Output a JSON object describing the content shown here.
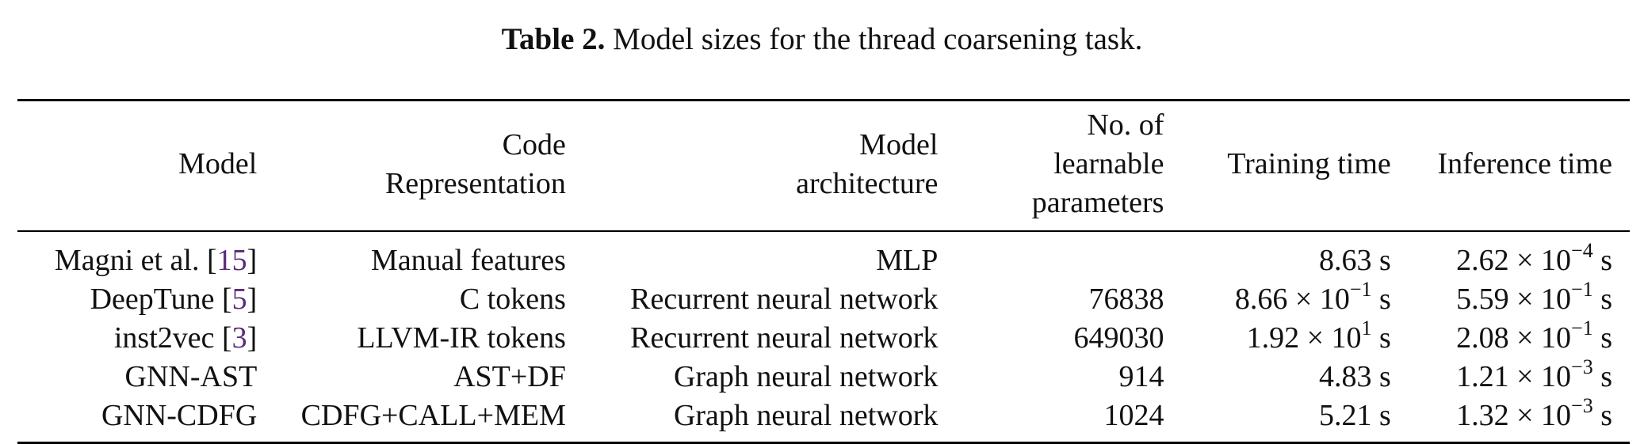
{
  "caption": {
    "label": "Table 2.",
    "text": "Model sizes for the thread coarsening task."
  },
  "headers": [
    [
      "Model"
    ],
    [
      "Code",
      "Representation"
    ],
    [
      "Model",
      "architecture"
    ],
    [
      "No. of learnable",
      "parameters"
    ],
    [
      "Training time"
    ],
    [
      "Inference time"
    ]
  ],
  "rows": [
    {
      "model": "Magni et al. ",
      "ref": "15",
      "code": "Manual features",
      "arch": "MLP",
      "params": "",
      "train": {
        "mant": "8.63 s",
        "exp": ""
      },
      "infer": {
        "mant": "2.62 × 10",
        "exp": "−4",
        "unit": " s"
      }
    },
    {
      "model": "DeepTune ",
      "ref": "5",
      "code": "C tokens",
      "arch": "Recurrent neural network",
      "params": "76838",
      "train": {
        "mant": "8.66 × 10",
        "exp": "−1",
        "unit": " s"
      },
      "infer": {
        "mant": "5.59 × 10",
        "exp": "−1",
        "unit": " s"
      }
    },
    {
      "model": "inst2vec ",
      "ref": "3",
      "code": "LLVM-IR tokens",
      "arch": "Recurrent neural network",
      "params": "649030",
      "train": {
        "mant": "1.92 × 10",
        "exp": "1",
        "unit": " s"
      },
      "infer": {
        "mant": "2.08 × 10",
        "exp": "−1",
        "unit": " s"
      }
    },
    {
      "model": "GNN-AST",
      "ref": "",
      "code": "AST+DF",
      "arch": "Graph neural network",
      "params": "914",
      "train": {
        "mant": "4.83 s",
        "exp": ""
      },
      "infer": {
        "mant": "1.21 × 10",
        "exp": "−3",
        "unit": " s"
      }
    },
    {
      "model": "GNN-CDFG",
      "ref": "",
      "code": "CDFG+CALL+MEM",
      "arch": "Graph neural network",
      "params": "1024",
      "train": {
        "mant": "5.21 s",
        "exp": ""
      },
      "infer": {
        "mant": "1.32 × 10",
        "exp": "−3",
        "unit": " s"
      }
    }
  ]
}
